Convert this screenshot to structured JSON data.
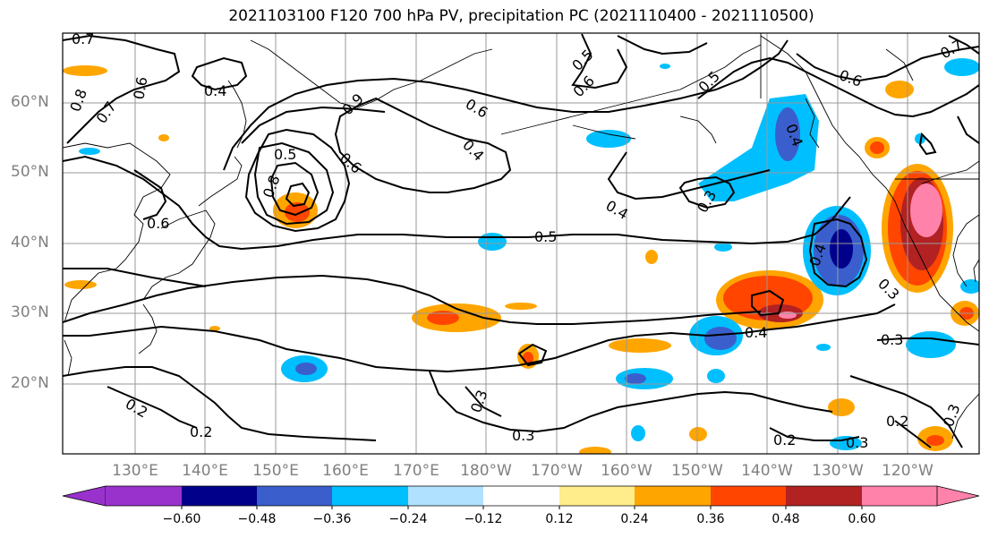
{
  "title": "2021103100 F120 700 hPa PV, precipitation PC (2021110400 - 2021110500)",
  "lat_labels": [
    "60°N",
    "50°N",
    "40°N",
    "30°N",
    "20°N"
  ],
  "lon_labels": [
    "130°E",
    "140°E",
    "150°E",
    "160°E",
    "170°E",
    "180°W",
    "170°W",
    "160°W",
    "150°W",
    "140°W",
    "130°W",
    "120°W"
  ],
  "colorbar": {
    "ticks": [
      "−0.60",
      "−0.48",
      "−0.36",
      "−0.24",
      "−0.12",
      "0.12",
      "0.24",
      "0.36",
      "0.48",
      "0.60"
    ],
    "colors": [
      "#9932CC",
      "#00008B",
      "#3A5FCD",
      "#00BFFF",
      "#B0E2FF",
      "#FFFFFF",
      "#FFEC8B",
      "#FFA500",
      "#FF4500",
      "#B22222",
      "#FF82AB"
    ]
  },
  "contour_labels": [
    "0.7",
    "0.4",
    "0.6",
    "0.8",
    "0.7",
    "0.6",
    "0.5",
    "0.8",
    "0.9",
    "0.6",
    "0.4",
    "0.5",
    "0.6",
    "0.4",
    "0.3",
    "0.4",
    "0.4",
    "0.5",
    "0.4",
    "0.3",
    "0.3",
    "0.3",
    "0.2",
    "0.2",
    "0.2",
    "0.3",
    "0.2",
    "0.3",
    "0.7",
    "0.6",
    "0.5",
    "0.6",
    "0.3"
  ]
}
